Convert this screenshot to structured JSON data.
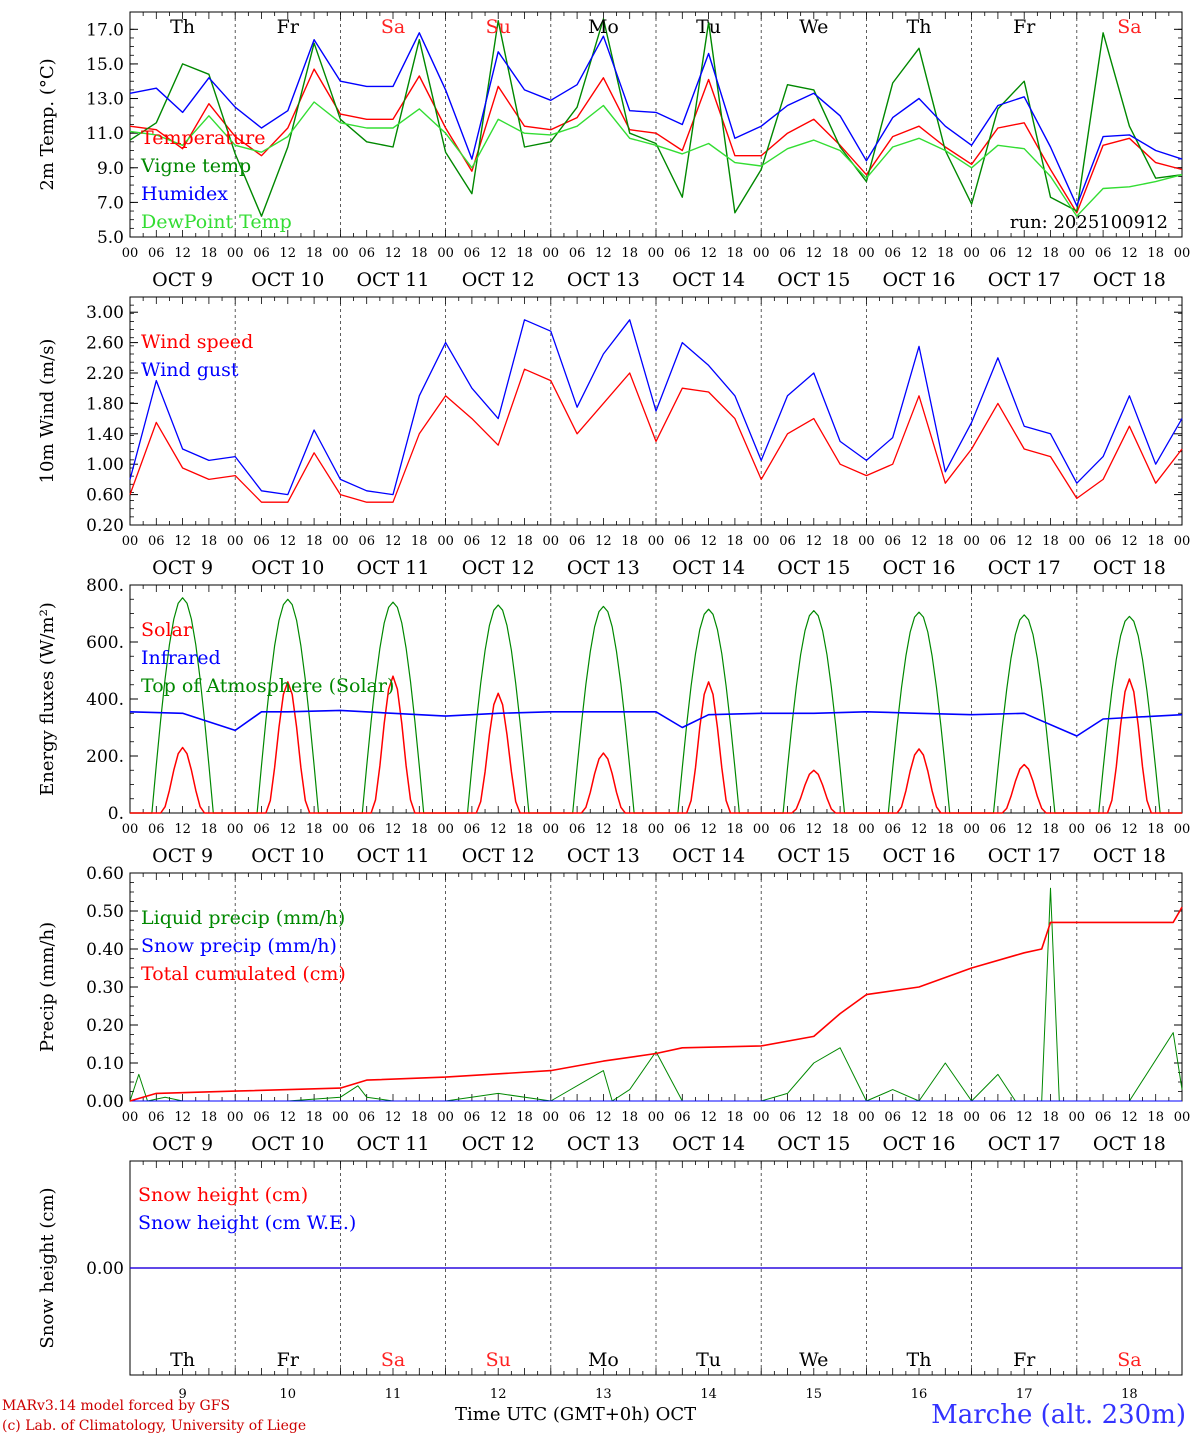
{
  "station": "Marche (alt. 230m)",
  "credit": {
    "model": "MARv3.14 model forced by GFS",
    "lab": "(c) Lab. of Climatology, University of Liege"
  },
  "x_title": "Time UTC (GMT+0h) OCT",
  "run_label": "run: 2025100912",
  "days": {
    "names": [
      "Th",
      "Fr",
      "Sa",
      "Su",
      "Mo",
      "Tu",
      "We",
      "Th",
      "Fr",
      "Sa"
    ],
    "weekend": [
      false,
      false,
      true,
      true,
      false,
      false,
      false,
      false,
      false,
      true
    ],
    "dates": [
      "OCT  9",
      "OCT 10",
      "OCT 11",
      "OCT 12",
      "OCT 13",
      "OCT 14",
      "OCT 15",
      "OCT 16",
      "OCT 17",
      "OCT 18"
    ],
    "numbers": [
      "9",
      "10",
      "11",
      "12",
      "13",
      "14",
      "15",
      "16",
      "17",
      "18"
    ],
    "hours": [
      "00",
      "06",
      "12",
      "18"
    ],
    "end_hour": "00"
  },
  "colors": {
    "red": "#ff0000",
    "green": "#008800",
    "blue": "#0000ff",
    "lightgreen": "#33dd33"
  },
  "chart_data": [
    {
      "type": "line",
      "ylabel": "2m Temp. (°C)",
      "ylim": [
        5.0,
        18.0
      ],
      "yticks": [
        "5.0",
        "7.0",
        "9.0",
        "11.0",
        "13.0",
        "15.0",
        "17.0"
      ],
      "x_hours": [
        0,
        6,
        12,
        18,
        24,
        30,
        36,
        42,
        48,
        54,
        60,
        66,
        72,
        78,
        84,
        90,
        96,
        102,
        108,
        114,
        120,
        126,
        132,
        138,
        144,
        150,
        156,
        162,
        168,
        174,
        180,
        186,
        192,
        198,
        204,
        210,
        216,
        222,
        228,
        234,
        240
      ],
      "series": [
        {
          "name": "Temperature",
          "color": "red",
          "values": [
            11.4,
            11.2,
            10.1,
            12.7,
            10.8,
            9.7,
            11.3,
            14.7,
            12.1,
            11.8,
            11.8,
            14.3,
            11.3,
            8.8,
            13.7,
            11.4,
            11.2,
            11.9,
            14.2,
            11.2,
            11.0,
            10.0,
            14.1,
            9.7,
            9.7,
            11.0,
            11.8,
            10.3,
            8.6,
            10.8,
            11.4,
            10.2,
            9.2,
            11.3,
            11.6,
            8.9,
            6.4,
            10.3,
            10.7,
            9.3,
            8.9
          ]
        },
        {
          "name": "Vigne temp",
          "color": "green",
          "values": [
            10.6,
            11.6,
            15.0,
            14.4,
            9.8,
            6.2,
            10.2,
            16.2,
            11.8,
            10.5,
            10.2,
            16.4,
            9.9,
            7.5,
            17.5,
            10.2,
            10.5,
            12.5,
            17.6,
            11.0,
            10.4,
            7.3,
            17.4,
            6.4,
            8.9,
            13.8,
            13.5,
            10.2,
            8.2,
            13.9,
            15.9,
            10.0,
            6.9,
            12.4,
            14.0,
            7.3,
            6.5,
            16.8,
            11.4,
            8.4,
            8.6
          ]
        },
        {
          "name": "Humidex",
          "color": "blue",
          "values": [
            13.3,
            13.6,
            12.2,
            14.2,
            12.5,
            11.3,
            12.3,
            16.4,
            14.0,
            13.7,
            13.7,
            16.8,
            13.5,
            9.5,
            15.7,
            13.5,
            12.9,
            13.8,
            16.6,
            12.3,
            12.2,
            11.5,
            15.6,
            10.7,
            11.4,
            12.6,
            13.3,
            12.0,
            9.4,
            11.9,
            13.0,
            11.4,
            10.3,
            12.6,
            13.1,
            10.2,
            6.8,
            10.8,
            10.9,
            10.0,
            9.5
          ]
        },
        {
          "name": "DewPoint Temp",
          "color": "lightgreen",
          "values": [
            11.1,
            10.9,
            10.3,
            12.0,
            10.3,
            9.9,
            10.8,
            12.8,
            11.6,
            11.3,
            11.3,
            12.4,
            11.0,
            9.0,
            11.8,
            11.0,
            10.9,
            11.4,
            12.6,
            10.7,
            10.3,
            9.8,
            10.4,
            9.3,
            9.1,
            10.1,
            10.6,
            10.0,
            8.4,
            10.2,
            10.7,
            10.0,
            9.0,
            10.3,
            10.1,
            8.5,
            6.2,
            7.8,
            7.9,
            8.2,
            8.6
          ]
        }
      ]
    },
    {
      "type": "line",
      "ylabel": "10m Wind (m/s)",
      "ylim": [
        0.2,
        3.2
      ],
      "yticks": [
        "0.20",
        "0.60",
        "1.00",
        "1.40",
        "1.80",
        "2.20",
        "2.60",
        "3.00"
      ],
      "x_hours": [
        0,
        6,
        12,
        18,
        24,
        30,
        36,
        42,
        48,
        54,
        60,
        66,
        72,
        78,
        84,
        90,
        96,
        102,
        108,
        114,
        120,
        126,
        132,
        138,
        144,
        150,
        156,
        162,
        168,
        174,
        180,
        186,
        192,
        198,
        204,
        210,
        216,
        222,
        228,
        234,
        240
      ],
      "series": [
        {
          "name": "Wind speed",
          "color": "red",
          "values": [
            0.6,
            1.55,
            0.95,
            0.8,
            0.85,
            0.5,
            0.5,
            1.15,
            0.6,
            0.5,
            0.5,
            1.4,
            1.9,
            1.6,
            1.25,
            2.25,
            2.1,
            1.4,
            1.8,
            2.2,
            1.3,
            2.0,
            1.95,
            1.6,
            0.8,
            1.4,
            1.6,
            1.0,
            0.85,
            1.0,
            1.9,
            0.75,
            1.2,
            1.8,
            1.2,
            1.1,
            0.55,
            0.8,
            1.5,
            0.75,
            1.2
          ]
        },
        {
          "name": "Wind gust",
          "color": "blue",
          "values": [
            0.8,
            2.1,
            1.2,
            1.05,
            1.1,
            0.65,
            0.6,
            1.45,
            0.8,
            0.65,
            0.6,
            1.9,
            2.6,
            2.0,
            1.6,
            2.9,
            2.75,
            1.75,
            2.45,
            2.9,
            1.7,
            2.6,
            2.3,
            1.9,
            1.05,
            1.9,
            2.2,
            1.3,
            1.05,
            1.35,
            2.55,
            0.9,
            1.55,
            2.4,
            1.5,
            1.4,
            0.75,
            1.1,
            1.9,
            1.0,
            1.6
          ]
        }
      ]
    },
    {
      "type": "line",
      "ylabel": "Energy fluxes (W/m²)",
      "ylim": [
        0,
        800
      ],
      "yticks": [
        "0.",
        "200.",
        "400.",
        "600.",
        "800."
      ],
      "peaks": {
        "days": [
          0,
          1,
          2,
          3,
          4,
          5,
          6,
          7,
          8,
          9
        ],
        "solar": [
          230,
          460,
          480,
          420,
          210,
          460,
          150,
          225,
          170,
          470
        ],
        "toa": [
          755,
          750,
          740,
          730,
          725,
          715,
          710,
          705,
          695,
          690
        ]
      },
      "infrared": {
        "x_hours": [
          0,
          12,
          24,
          30,
          36,
          48,
          60,
          72,
          84,
          96,
          108,
          120,
          126,
          132,
          144,
          156,
          168,
          180,
          192,
          204,
          216,
          222,
          228,
          240
        ],
        "values": [
          355,
          350,
          290,
          355,
          355,
          360,
          350,
          340,
          350,
          355,
          355,
          355,
          300,
          345,
          350,
          350,
          355,
          350,
          345,
          350,
          270,
          330,
          335,
          345
        ]
      },
      "series": [
        {
          "name": "Solar",
          "color": "red"
        },
        {
          "name": "Infrared",
          "color": "blue"
        },
        {
          "name": "Top of Atmosphere (Solar)",
          "color": "green"
        }
      ]
    },
    {
      "type": "line",
      "ylabel": "Precip (mm/h)",
      "ylim": [
        0,
        0.6
      ],
      "yticks": [
        "0.00",
        "0.10",
        "0.20",
        "0.30",
        "0.40",
        "0.50",
        "0.60"
      ],
      "series": [
        {
          "name": "Liquid precip (mm/h)",
          "color": "green",
          "x_hours": [
            0,
            2,
            4,
            8,
            12,
            18,
            24,
            36,
            48,
            52,
            54,
            60,
            72,
            84,
            96,
            108,
            110,
            114,
            120,
            126,
            132,
            144,
            150,
            156,
            162,
            168,
            174,
            180,
            186,
            192,
            198,
            202,
            204,
            208,
            210,
            212,
            214,
            216,
            228,
            238,
            240
          ],
          "values": [
            0,
            0.07,
            0,
            0.01,
            0,
            0,
            0,
            0,
            0.01,
            0.04,
            0.01,
            0,
            0,
            0.02,
            0,
            0.08,
            0,
            0.03,
            0.13,
            0,
            0,
            0,
            0.02,
            0.1,
            0.14,
            0,
            0.03,
            0,
            0.1,
            0,
            0.07,
            0,
            0,
            0,
            0.56,
            0,
            0,
            0,
            0,
            0.18,
            0.03
          ]
        },
        {
          "name": "Snow precip (mm/h)",
          "color": "blue",
          "x_hours": [
            0,
            240
          ],
          "values": [
            0,
            0
          ]
        },
        {
          "name": "Total cumulated (cm)",
          "color": "red",
          "x_hours": [
            0,
            6,
            24,
            48,
            54,
            72,
            96,
            108,
            120,
            126,
            144,
            156,
            162,
            168,
            180,
            192,
            204,
            208,
            210,
            216,
            228,
            238,
            240
          ],
          "values": [
            0,
            0.02,
            0.026,
            0.034,
            0.055,
            0.063,
            0.08,
            0.105,
            0.125,
            0.14,
            0.145,
            0.17,
            0.23,
            0.28,
            0.3,
            0.35,
            0.39,
            0.4,
            0.47,
            0.47,
            0.47,
            0.47,
            0.51
          ]
        }
      ]
    },
    {
      "type": "line",
      "ylabel": "Snow height (cm)",
      "ylim": [
        -1,
        1
      ],
      "yticks": [
        "0.00"
      ],
      "series": [
        {
          "name": "Snow height (cm)",
          "color": "red",
          "x_hours": [
            0,
            240
          ],
          "values": [
            0,
            0
          ]
        },
        {
          "name": "Snow height (cm W.E.)",
          "color": "blue",
          "x_hours": [
            0,
            240
          ],
          "values": [
            0,
            0
          ]
        }
      ]
    }
  ]
}
